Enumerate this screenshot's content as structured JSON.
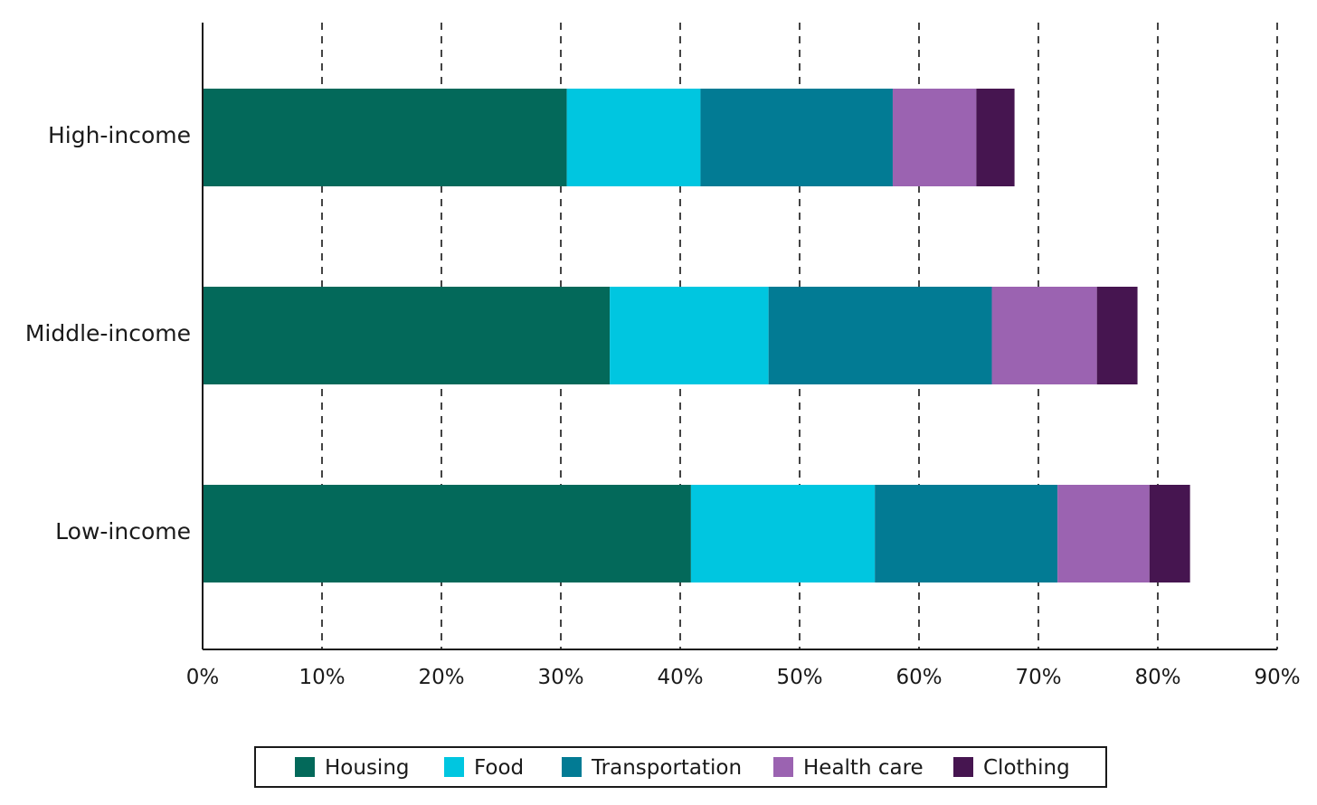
{
  "chart_data": {
    "type": "bar",
    "orientation": "horizontal",
    "stacked": true,
    "categories": [
      "High-income",
      "Middle-income",
      "Low-income"
    ],
    "series": [
      {
        "name": "Housing",
        "color": "#03695a",
        "values": [
          30.5,
          34.1,
          40.9
        ]
      },
      {
        "name": "Food",
        "color": "#00c6e0",
        "values": [
          11.2,
          13.3,
          15.4
        ]
      },
      {
        "name": "Transportation",
        "color": "#027b94",
        "values": [
          16.1,
          18.7,
          15.3
        ]
      },
      {
        "name": "Health care",
        "color": "#9b63b1",
        "values": [
          7.0,
          8.8,
          7.7
        ]
      },
      {
        "name": "Clothing",
        "color": "#461550",
        "values": [
          3.2,
          3.4,
          3.4
        ]
      }
    ],
    "x_ticks": [
      "0%",
      "10%",
      "20%",
      "30%",
      "40%",
      "50%",
      "60%",
      "70%",
      "80%",
      "90%"
    ],
    "xlim": [
      0,
      90
    ],
    "xlabel": "",
    "ylabel": "",
    "title": "",
    "grid": "vertical dashed",
    "legend_position": "bottom"
  }
}
